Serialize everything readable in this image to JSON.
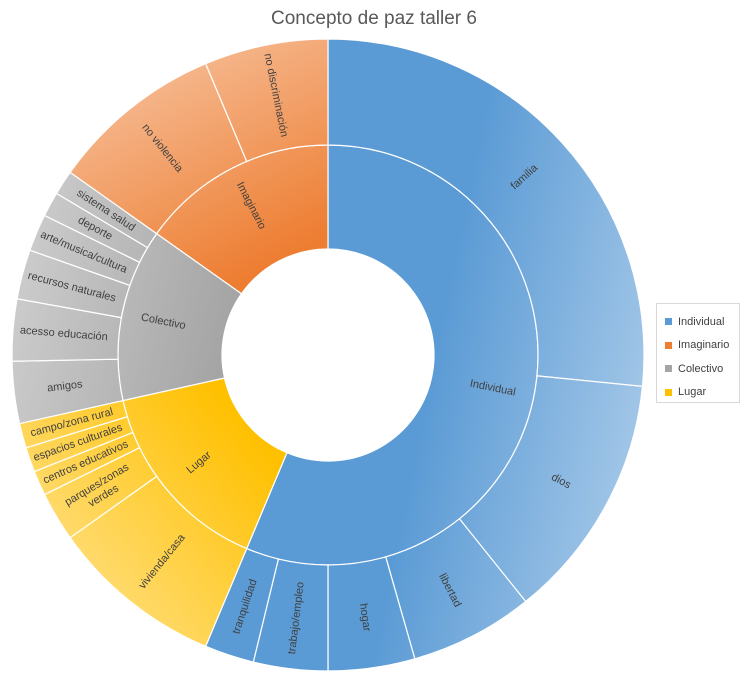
{
  "chart_data": {
    "type": "sunburst",
    "title": "Concepto de paz taller 6",
    "legend_position": "right",
    "groups": [
      {
        "name": "Individual",
        "color": "#5b9bd5",
        "children": [
          {
            "name": "familia",
            "value": 21
          },
          {
            "name": "dios",
            "value": 10
          },
          {
            "name": "libertad",
            "value": 5
          },
          {
            "name": "hogar",
            "value": 3.5
          },
          {
            "name": "trabajo/empleo",
            "value": 3
          },
          {
            "name": "tranquilidad",
            "value": 2
          }
        ]
      },
      {
        "name": "Lugar",
        "color": "#ffc000",
        "children": [
          {
            "name": "vivienda/casa",
            "value": 7
          },
          {
            "name": "parques/zonas verdes",
            "value": 2
          },
          {
            "name": "centros educativos",
            "value": 1
          },
          {
            "name": "espacios culturales",
            "value": 1
          },
          {
            "name": "campo/zona rural",
            "value": 1
          }
        ]
      },
      {
        "name": "Colectivo",
        "color": "#a5a5a5",
        "children": [
          {
            "name": "amigos",
            "value": 2.5
          },
          {
            "name": "acesso educación",
            "value": 2.5
          },
          {
            "name": "recursos naturales",
            "value": 2
          },
          {
            "name": "arte/musica/cultura",
            "value": 1.5
          },
          {
            "name": "deporte",
            "value": 1
          },
          {
            "name": "sistema salud",
            "value": 1
          }
        ]
      },
      {
        "name": "Imaginario",
        "color": "#ed7d31",
        "children": [
          {
            "name": "no violencia",
            "value": 7
          },
          {
            "name": "no discriminación",
            "value": 5
          }
        ]
      }
    ],
    "legend": [
      "Individual",
      "Imaginario",
      "Colectivo",
      "Lugar"
    ]
  }
}
